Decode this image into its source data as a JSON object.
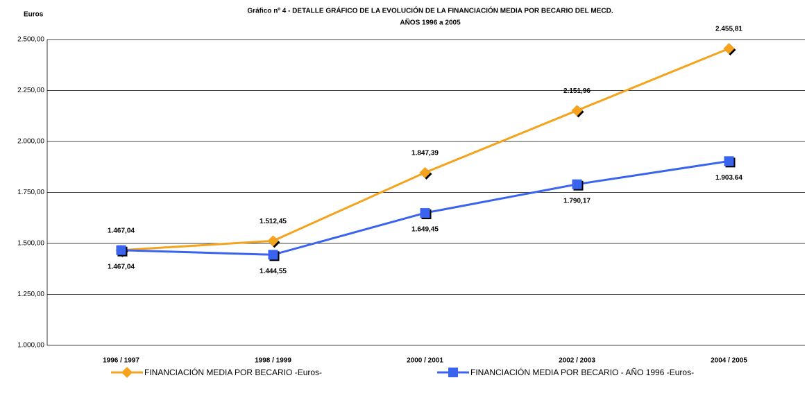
{
  "chart_data": {
    "type": "line",
    "title": "Gráfico nº 4 - DETALLE GRÁFICO DE LA EVOLUCIÓN DE LA FINANCIACIÓN MEDIA POR BECARIO DEL MECD.",
    "subtitle": "AÑOS 1996 a 2005",
    "y_label": "Euros",
    "categories": [
      "1996 / 1997",
      "1998 / 1999",
      "2000 / 2001",
      "2002 / 2003",
      "2004 / 2005"
    ],
    "series": [
      {
        "name": "FINANCIACIÓN MEDIA POR BECARIO -Euros-",
        "color": "#f5a21c",
        "marker": "diamond",
        "values": [
          1467.04,
          1512.45,
          1847.39,
          2151.96,
          2455.81
        ],
        "value_labels": [
          "1.467,04",
          "1.512,45",
          "1.847,39",
          "2.151,96",
          "2.455,81"
        ]
      },
      {
        "name": "FINANCIACIÓN MEDIA POR BECARIO -  AÑO 1996 -Euros-",
        "color": "#3a64f0",
        "marker": "square",
        "values": [
          1467.04,
          1444.55,
          1649.45,
          1790.17,
          1903.64
        ],
        "value_labels": [
          "1.467,04",
          "1.444,55",
          "1.649,45",
          "1.790,17",
          "1.903.64"
        ]
      }
    ],
    "ylim": [
      1000,
      2500
    ],
    "yticks": [
      {
        "value": 1000,
        "label": "1.000,00"
      },
      {
        "value": 1250,
        "label": "1.250,00"
      },
      {
        "value": 1500,
        "label": "1.500,00"
      },
      {
        "value": 1750,
        "label": "1.750,00"
      },
      {
        "value": 2000,
        "label": "2.000,00"
      },
      {
        "value": 2250,
        "label": "2.250,00"
      },
      {
        "value": 2500,
        "label": "2.500,00"
      }
    ],
    "grid": true,
    "legend": "bottom"
  }
}
